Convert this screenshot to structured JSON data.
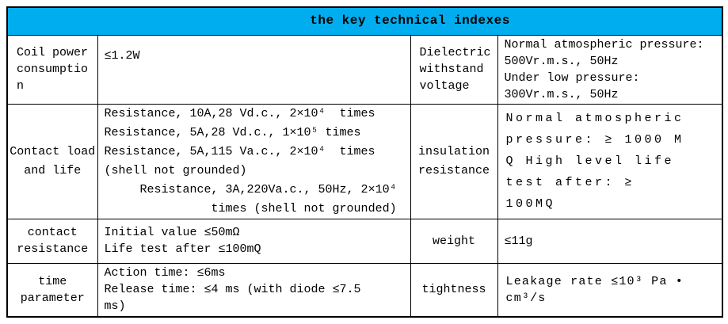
{
  "title": "the key technical indexes",
  "theme": {
    "header_bg": "#00AEEF",
    "border_color": "#000000",
    "text_color": "#000000"
  },
  "rows": [
    {
      "param_left": "Coil power\nconsumptio\nn",
      "value_left": "≤1.2W",
      "param_right": "Dielectric\nwithstand\nvoltage",
      "value_right": "Normal atmospheric pressure:\n500Vr.m.s., 50Hz\nUnder low pressure:\n300Vr.m.s., 50Hz"
    },
    {
      "param_left": "Contact load\nand life",
      "value_left": "Resistance, 10A,28 Vd.c., 2×10⁴  times\nResistance, 5A,28 Vd.c., 1×10⁵ times\nResistance, 5A,115 Va.c., 2×10⁴  times\n(shell not grounded)\n     Resistance, 3A,220Va.c., 50Hz, 2×10⁴\n               times (shell not grounded)",
      "param_right": "insulation\nresistance",
      "value_right": "Normal atmospheric\npressure: ≥ 1000 M\nQ High level life\ntest after: ≥\n100MQ"
    },
    {
      "param_left": "contact\nresistance",
      "value_left": "Initial value ≤50mΩ\nLife test after ≤100mQ",
      "param_right": "weight",
      "value_right": "≤11g"
    },
    {
      "param_left": "time\nparameter",
      "value_left": "Action time: ≤6ms\nRelease time: ≤4 ms (with diode ≤7.5\nms)",
      "param_right": "tightness",
      "value_right": "Leakage rate ≤10³ Pa •\ncm³/s"
    }
  ]
}
